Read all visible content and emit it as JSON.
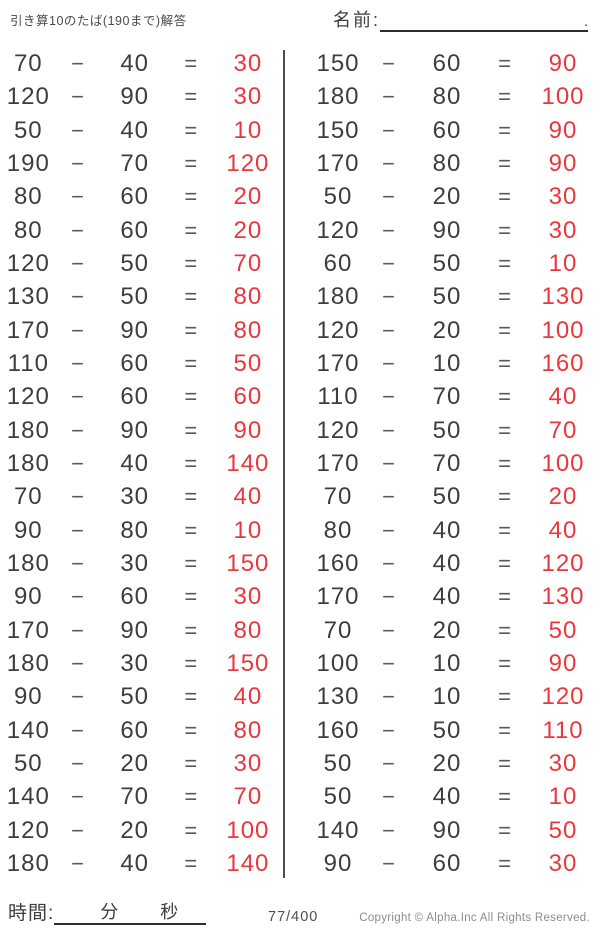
{
  "header": {
    "title": "引き算10のたば(190まで)解答",
    "name_label": "名前:",
    "name_line_end": "."
  },
  "symbols": {
    "minus": "−",
    "equals": "="
  },
  "columns": [
    {
      "problems": [
        {
          "a": "70",
          "b": "40",
          "ans": "30"
        },
        {
          "a": "120",
          "b": "90",
          "ans": "30"
        },
        {
          "a": "50",
          "b": "40",
          "ans": "10"
        },
        {
          "a": "190",
          "b": "70",
          "ans": "120"
        },
        {
          "a": "80",
          "b": "60",
          "ans": "20"
        },
        {
          "a": "80",
          "b": "60",
          "ans": "20"
        },
        {
          "a": "120",
          "b": "50",
          "ans": "70"
        },
        {
          "a": "130",
          "b": "50",
          "ans": "80"
        },
        {
          "a": "170",
          "b": "90",
          "ans": "80"
        },
        {
          "a": "110",
          "b": "60",
          "ans": "50"
        },
        {
          "a": "120",
          "b": "60",
          "ans": "60"
        },
        {
          "a": "180",
          "b": "90",
          "ans": "90"
        },
        {
          "a": "180",
          "b": "40",
          "ans": "140"
        },
        {
          "a": "70",
          "b": "30",
          "ans": "40"
        },
        {
          "a": "90",
          "b": "80",
          "ans": "10"
        },
        {
          "a": "180",
          "b": "30",
          "ans": "150"
        },
        {
          "a": "90",
          "b": "60",
          "ans": "30"
        },
        {
          "a": "170",
          "b": "90",
          "ans": "80"
        },
        {
          "a": "180",
          "b": "30",
          "ans": "150"
        },
        {
          "a": "90",
          "b": "50",
          "ans": "40"
        },
        {
          "a": "140",
          "b": "60",
          "ans": "80"
        },
        {
          "a": "50",
          "b": "20",
          "ans": "30"
        },
        {
          "a": "140",
          "b": "70",
          "ans": "70"
        },
        {
          "a": "120",
          "b": "20",
          "ans": "100"
        },
        {
          "a": "180",
          "b": "40",
          "ans": "140"
        }
      ]
    },
    {
      "problems": [
        {
          "a": "150",
          "b": "60",
          "ans": "90"
        },
        {
          "a": "180",
          "b": "80",
          "ans": "100"
        },
        {
          "a": "150",
          "b": "60",
          "ans": "90"
        },
        {
          "a": "170",
          "b": "80",
          "ans": "90"
        },
        {
          "a": "50",
          "b": "20",
          "ans": "30"
        },
        {
          "a": "120",
          "b": "90",
          "ans": "30"
        },
        {
          "a": "60",
          "b": "50",
          "ans": "10"
        },
        {
          "a": "180",
          "b": "50",
          "ans": "130"
        },
        {
          "a": "120",
          "b": "20",
          "ans": "100"
        },
        {
          "a": "170",
          "b": "10",
          "ans": "160"
        },
        {
          "a": "110",
          "b": "70",
          "ans": "40"
        },
        {
          "a": "120",
          "b": "50",
          "ans": "70"
        },
        {
          "a": "170",
          "b": "70",
          "ans": "100"
        },
        {
          "a": "70",
          "b": "50",
          "ans": "20"
        },
        {
          "a": "80",
          "b": "40",
          "ans": "40"
        },
        {
          "a": "160",
          "b": "40",
          "ans": "120"
        },
        {
          "a": "170",
          "b": "40",
          "ans": "130"
        },
        {
          "a": "70",
          "b": "20",
          "ans": "50"
        },
        {
          "a": "100",
          "b": "10",
          "ans": "90"
        },
        {
          "a": "130",
          "b": "10",
          "ans": "120"
        },
        {
          "a": "160",
          "b": "50",
          "ans": "110"
        },
        {
          "a": "50",
          "b": "20",
          "ans": "30"
        },
        {
          "a": "50",
          "b": "40",
          "ans": "10"
        },
        {
          "a": "140",
          "b": "90",
          "ans": "50"
        },
        {
          "a": "90",
          "b": "60",
          "ans": "30"
        }
      ]
    }
  ],
  "footer": {
    "time_label": "時間:",
    "time_line": "　　分　　秒　",
    "page": "77/400",
    "copyright": "Copyright ©  Alpha.Inc All Rights Reserved."
  },
  "colors": {
    "answer_red": "#e8383d",
    "ink": "#3d3d3d"
  }
}
